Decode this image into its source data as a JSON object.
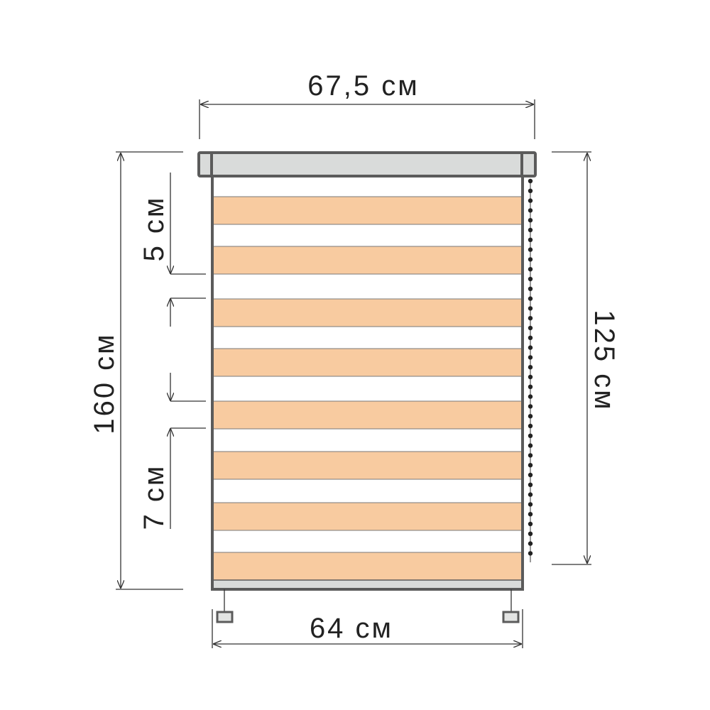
{
  "dimensions": {
    "cassette_width": "67,5 см",
    "total_height": "160 см",
    "chain_length": "125 см",
    "fabric_width": "64 см",
    "opaque_stripe_height": "5 см",
    "sheer_stripe_height": "7 см"
  },
  "colors": {
    "frame": "#5b5b5b",
    "cassette_fill": "#d9dbda",
    "opaque_stripe": "#f8cba0",
    "sheer_stripe": "#ffffff",
    "chain": "#222222",
    "text": "#222222"
  },
  "icons": {
    "chain": "bead-chain",
    "weights": "chain-weight"
  }
}
